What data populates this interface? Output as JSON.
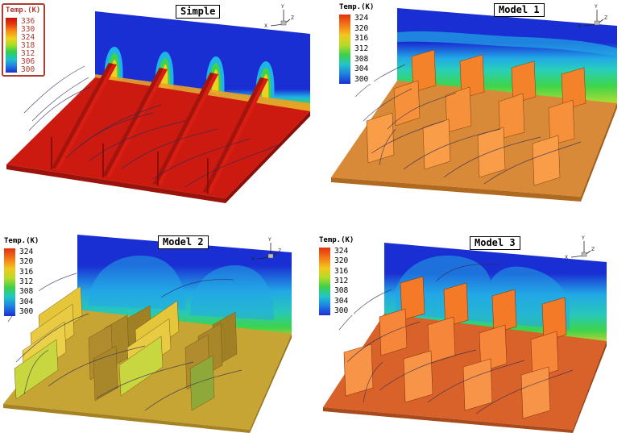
{
  "panels": [
    {
      "title": "Simple",
      "legend": {
        "title": "Temp.(K)",
        "ticks": [
          "336",
          "330",
          "324",
          "318",
          "312",
          "306",
          "300"
        ]
      },
      "triad": {
        "x": "X",
        "y": "Y",
        "z": "Z"
      }
    },
    {
      "title": "Model 1",
      "legend": {
        "title": "Temp.(K)",
        "ticks": [
          "324",
          "320",
          "316",
          "312",
          "308",
          "304",
          "300"
        ]
      },
      "triad": {
        "x": "X",
        "y": "Y",
        "z": "Z"
      }
    },
    {
      "title": "Model 2",
      "legend": {
        "title": "Temp.(K)",
        "ticks": [
          "324",
          "320",
          "316",
          "312",
          "308",
          "304",
          "300"
        ]
      },
      "triad": {
        "x": "X",
        "y": "Y",
        "z": "Z"
      }
    },
    {
      "title": "Model 3",
      "legend": {
        "title": "Temp.(K)",
        "ticks": [
          "324",
          "320",
          "316",
          "312",
          "308",
          "304",
          "300"
        ]
      },
      "triad": {
        "x": "X",
        "y": "Y",
        "z": "Z"
      }
    }
  ],
  "colors": {
    "cold": "#1c35d6",
    "mid": "#22b8e0",
    "green": "#3fd24a",
    "hot_simple": "#cc1a10",
    "fin_model": "#f4822a",
    "base_model": "#d98a38",
    "base_model2": "#c7a534",
    "fin_model2": "#e5c53a"
  }
}
